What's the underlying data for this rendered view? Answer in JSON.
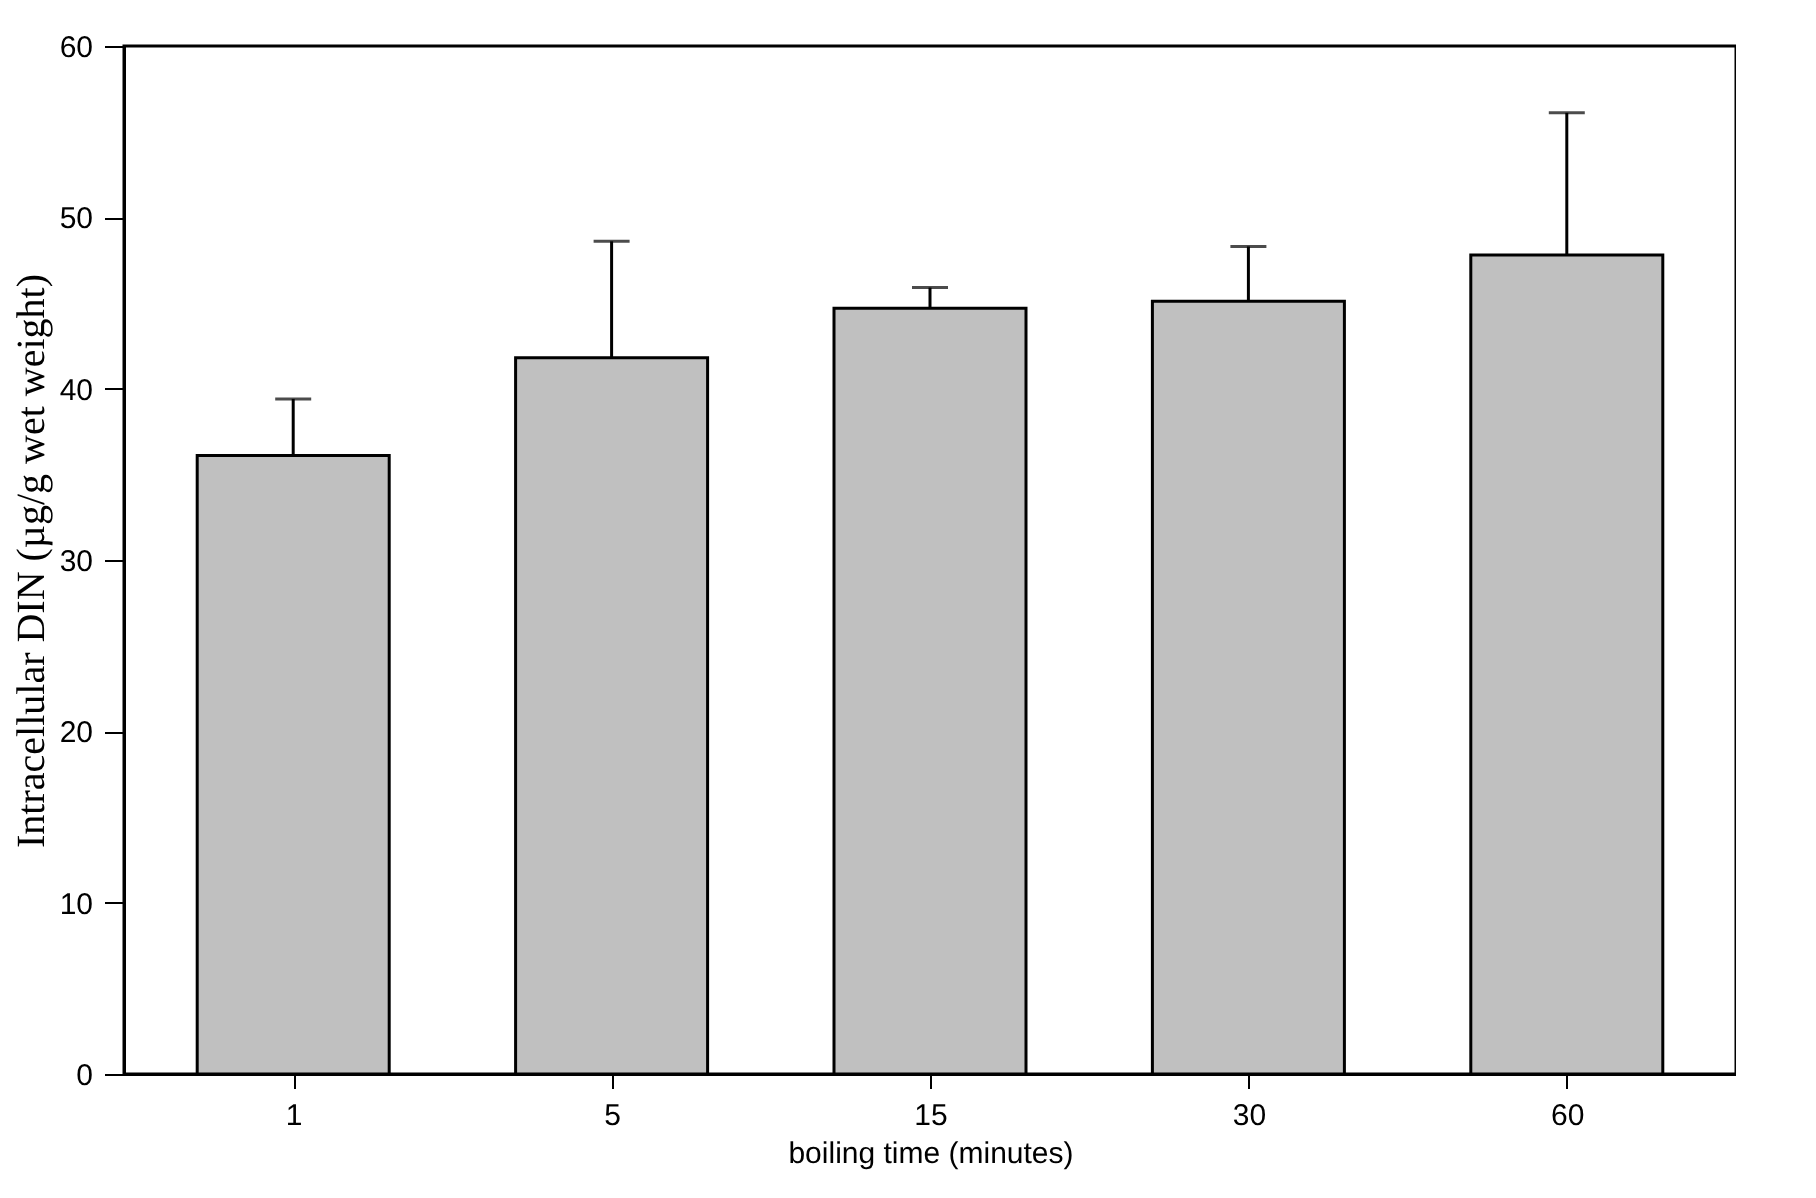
{
  "chart_data": {
    "type": "bar",
    "xlabel": "boiling time (minutes)",
    "ylabel": "Intracellular DIN (µg/g wet weight)",
    "categories": [
      "1",
      "5",
      "15",
      "30",
      "60"
    ],
    "values": [
      36.1,
      41.8,
      44.7,
      45.1,
      47.8
    ],
    "errors": [
      [
        36.1,
        39.4
      ],
      [
        41.8,
        48.6
      ],
      [
        44.7,
        45.9
      ],
      [
        45.1,
        48.3
      ],
      [
        47.8,
        56.1
      ]
    ],
    "color": "#c0c0c0",
    "ylim": [
      0,
      60
    ],
    "yticks": [
      0,
      10,
      20,
      30,
      40,
      50,
      60
    ],
    "grid": false
  }
}
